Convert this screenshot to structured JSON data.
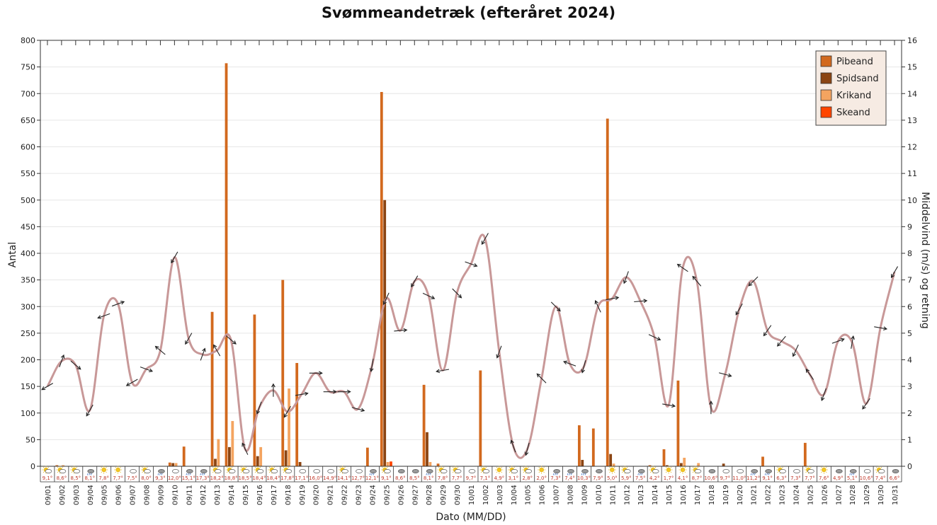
{
  "chart_data": {
    "type": "bar",
    "title": "Svømmeandetræk (efteråret 2024)",
    "xlabel": "Dato (MM/DD)",
    "ylabel": "Antal",
    "y2label": "Middelvind (m/s) og retning",
    "ylim": [
      0,
      800
    ],
    "y2lim": [
      0,
      16
    ],
    "yticks": [
      0,
      50,
      100,
      150,
      200,
      250,
      300,
      350,
      400,
      450,
      500,
      550,
      600,
      650,
      700,
      750,
      800
    ],
    "y2ticks": [
      0,
      1,
      2,
      3,
      4,
      5,
      6,
      7,
      8,
      9,
      10,
      11,
      12,
      13,
      14,
      15,
      16
    ],
    "grid": true,
    "legend_position": "top-right",
    "categories": [
      "09/01",
      "09/02",
      "09/03",
      "09/04",
      "09/05",
      "09/06",
      "09/07",
      "09/08",
      "09/09",
      "09/10",
      "09/11",
      "09/12",
      "09/13",
      "09/14",
      "09/15",
      "09/16",
      "09/17",
      "09/18",
      "09/19",
      "09/20",
      "09/21",
      "09/22",
      "09/23",
      "09/24",
      "09/25",
      "09/26",
      "09/27",
      "09/28",
      "09/29",
      "09/30",
      "10/01",
      "10/02",
      "10/03",
      "10/04",
      "10/05",
      "10/06",
      "10/07",
      "10/08",
      "10/09",
      "10/10",
      "10/11",
      "10/12",
      "10/13",
      "10/14",
      "10/15",
      "10/16",
      "10/17",
      "10/18",
      "10/19",
      "10/20",
      "10/21",
      "10/22",
      "10/23",
      "10/24",
      "10/25",
      "10/26",
      "10/27",
      "10/28",
      "10/29",
      "10/30",
      "10/31"
    ],
    "series": [
      {
        "name": "Pibeand",
        "color": "#d2691e",
        "values": [
          0,
          2,
          0,
          0,
          0,
          0,
          0,
          0,
          0,
          7,
          37,
          0,
          290,
          757,
          0,
          285,
          0,
          350,
          194,
          0,
          0,
          0,
          0,
          35,
          703,
          0,
          0,
          153,
          5,
          0,
          0,
          180,
          0,
          0,
          0,
          0,
          0,
          0,
          77,
          71,
          653,
          0,
          0,
          2,
          32,
          161,
          0,
          0,
          0,
          0,
          0,
          18,
          0,
          0,
          44,
          0,
          0,
          0,
          0,
          0,
          0
        ]
      },
      {
        "name": "Spidsand",
        "color": "#8b4513",
        "values": [
          0,
          0,
          0,
          0,
          0,
          0,
          0,
          0,
          0,
          6,
          0,
          0,
          14,
          36,
          0,
          19,
          0,
          30,
          8,
          0,
          0,
          0,
          0,
          0,
          500,
          0,
          0,
          64,
          0,
          0,
          0,
          0,
          0,
          0,
          0,
          0,
          0,
          0,
          12,
          0,
          23,
          0,
          0,
          0,
          2,
          6,
          0,
          0,
          5,
          0,
          0,
          0,
          0,
          0,
          0,
          0,
          0,
          0,
          0,
          0,
          0
        ]
      },
      {
        "name": "Krikand",
        "color": "#f4a460",
        "values": [
          0,
          2,
          0,
          0,
          0,
          0,
          0,
          0,
          0,
          6,
          0,
          0,
          51,
          85,
          0,
          36,
          0,
          146,
          0,
          0,
          0,
          0,
          0,
          0,
          8,
          0,
          0,
          8,
          0,
          0,
          0,
          0,
          0,
          0,
          0,
          0,
          0,
          0,
          0,
          0,
          5,
          0,
          0,
          0,
          0,
          16,
          6,
          0,
          0,
          0,
          0,
          0,
          0,
          0,
          0,
          0,
          0,
          0,
          0,
          0,
          0
        ]
      },
      {
        "name": "Skeand",
        "color": "#ff4500",
        "values": [
          0,
          0,
          0,
          0,
          0,
          0,
          0,
          0,
          0,
          0,
          0,
          0,
          0,
          0,
          0,
          0,
          0,
          0,
          0,
          0,
          0,
          0,
          0,
          0,
          9,
          0,
          0,
          0,
          0,
          0,
          0,
          0,
          0,
          0,
          0,
          0,
          0,
          0,
          0,
          0,
          0,
          0,
          0,
          0,
          0,
          0,
          0,
          0,
          0,
          0,
          0,
          0,
          0,
          0,
          0,
          0,
          0,
          0,
          0,
          0,
          0
        ]
      }
    ],
    "wind": {
      "color": "#c89898",
      "speed": [
        3.0,
        3.95,
        3.8,
        2.1,
        5.65,
        6.1,
        3.15,
        3.65,
        4.35,
        7.85,
        4.8,
        4.2,
        4.35,
        4.75,
        0.65,
        2.2,
        2.85,
        2.05,
        2.7,
        3.5,
        2.8,
        2.8,
        2.15,
        3.8,
        6.3,
        5.1,
        6.95,
        6.4,
        3.6,
        6.5,
        7.6,
        8.55,
        4.3,
        0.75,
        0.65,
        3.3,
        6.0,
        3.85,
        3.75,
        6.0,
        6.3,
        7.1,
        6.2,
        4.85,
        2.3,
        7.45,
        6.95,
        2.2,
        3.45,
        5.9,
        6.95,
        5.1,
        4.7,
        4.35,
        3.45,
        2.7,
        4.7,
        4.65,
        2.35,
        5.2,
        7.3
      ],
      "direction_deg": [
        60,
        200,
        310,
        30,
        70,
        250,
        60,
        290,
        130,
        30,
        30,
        200,
        150,
        310,
        155,
        20,
        180,
        30,
        260,
        270,
        270,
        270,
        285,
        10,
        25,
        265,
        30,
        295,
        80,
        315,
        290,
        30,
        20,
        160,
        15,
        135,
        315,
        110,
        15,
        155,
        260,
        20,
        265,
        295,
        280,
        125,
        140,
        180,
        285,
        30,
        45,
        35,
        40,
        25,
        145,
        20,
        250,
        190,
        35,
        280,
        30
      ]
    },
    "weather_icons": [
      "partly-sunny",
      "partly-sunny",
      "partly-sunny",
      "rain",
      "sunny",
      "sunny",
      "partly-cloudy",
      "partly-sunny",
      "rain",
      "partly-cloudy",
      "rain",
      "rain",
      "partly-sunny",
      "partly-sunny",
      "partly-sunny",
      "partly-sunny",
      "partly-sunny",
      "partly-sunny",
      "partly-cloudy",
      "partly-cloudy",
      "partly-cloudy",
      "partly-sunny",
      "partly-cloudy",
      "rain",
      "partly-sunny",
      "cloudy",
      "cloudy",
      "rain",
      "partly-sunny",
      "partly-sunny",
      "partly-cloudy",
      "partly-sunny",
      "sunny",
      "partly-sunny",
      "partly-sunny",
      "sunny",
      "rain",
      "rain",
      "rain",
      "cloudy",
      "sunny",
      "partly-sunny",
      "rain",
      "partly-sunny",
      "sunny",
      "sunny",
      "partly-sunny",
      "cloudy",
      "partly-cloudy",
      "partly-cloudy",
      "rain",
      "rain",
      "partly-sunny",
      "partly-cloudy",
      "partly-sunny",
      "sunny",
      "cloudy",
      "rain",
      "partly-cloudy",
      "partly-sunny",
      "cloudy"
    ],
    "temperatures": [
      "9,1°",
      "8,6°",
      "8,5°",
      "8,1°",
      "7,8°",
      "7,7°",
      "7,5°",
      "8,0°",
      "9,3°",
      "12,0°",
      "15,1°",
      "17,3°",
      "18,2°",
      "18,8°",
      "18,5°",
      "18,4°",
      "18,4°",
      "17,8°",
      "17,1°",
      "16,0°",
      "14,9°",
      "14,1°",
      "12,7°",
      "12,1°",
      "9,1°",
      "8,6°",
      "8,5°",
      "8,1°",
      "7,8°",
      "7,7°",
      "9,7°",
      "7,1°",
      "4,9°",
      "3,1°",
      "2,8°",
      "2,0°",
      "7,3°",
      "7,4°",
      "10,3°",
      "7,9°",
      "5,0°",
      "5,9°",
      "7,5°",
      "4,2°",
      "1,7°",
      "4,1°",
      "8,7°",
      "10,6°",
      "9,7°",
      "11,0°",
      "11,2°",
      "9,1°",
      "6,3°",
      "7,3°",
      "7,7°",
      "7,6°",
      "4,9°",
      "5,1°",
      "10,6°",
      "7,4°",
      "6,6°"
    ]
  }
}
